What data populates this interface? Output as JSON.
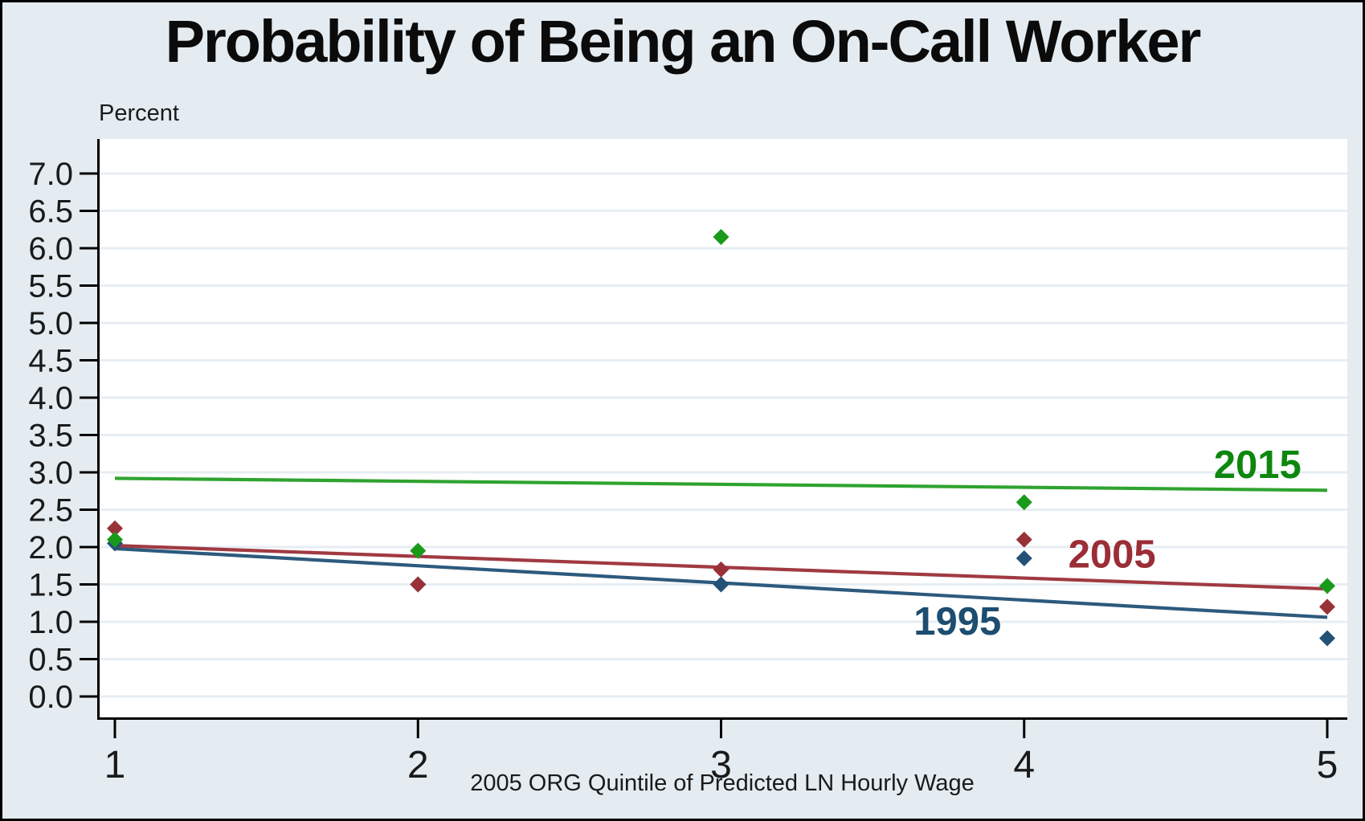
{
  "colors": {
    "background": "#e4ecf1",
    "plot_background": "#ffffff",
    "gridline": "#e7eef3",
    "axis": "#000000",
    "tick_label": "#1a1a1a"
  },
  "chart_data": {
    "type": "scatter",
    "title": "Probability of Being an On-Call Worker",
    "ylabel": "Percent",
    "xlabel": "2005 ORG Quintile of Predicted LN Hourly Wage",
    "x": [
      1,
      2,
      3,
      4,
      5
    ],
    "x_ticks": [
      "1",
      "2",
      "3",
      "4",
      "5"
    ],
    "y_ticks": [
      "0.0",
      "0.5",
      "1.0",
      "1.5",
      "2.0",
      "2.5",
      "3.0",
      "3.5",
      "4.0",
      "4.5",
      "5.0",
      "5.5",
      "6.0",
      "6.5",
      "7.0"
    ],
    "xlim": [
      0.94,
      5.07
    ],
    "ylim": [
      0,
      7.45
    ],
    "grid": true,
    "legend_position": "inline-labels",
    "series": [
      {
        "name": "1995",
        "values": [
          2.05,
          1.5,
          1.5,
          1.85,
          0.78
        ],
        "fit_line": {
          "x": [
            1,
            5
          ],
          "y": [
            1.98,
            1.06
          ]
        },
        "point_color": "#235177",
        "line_color": "#2d5a7d",
        "label_color": "#1d4d70",
        "label_x": 3.78,
        "label_y": 1.01
      },
      {
        "name": "2005",
        "values": [
          2.25,
          1.5,
          1.7,
          2.1,
          1.2
        ],
        "fit_line": {
          "x": [
            1,
            5
          ],
          "y": [
            2.02,
            1.44
          ]
        },
        "point_color": "#983238",
        "line_color": "#a03a42",
        "label_color": "#9a2d35",
        "label_x": 4.29,
        "label_y": 1.91
      },
      {
        "name": "2015",
        "values": [
          2.1,
          1.95,
          6.15,
          2.6,
          1.48
        ],
        "fit_line": {
          "x": [
            1,
            5
          ],
          "y": [
            2.92,
            2.76
          ]
        },
        "point_color": "#1a9a1a",
        "line_color": "#2fa32f",
        "label_color": "#0e870e",
        "label_x": 4.77,
        "label_y": 3.11
      }
    ]
  }
}
